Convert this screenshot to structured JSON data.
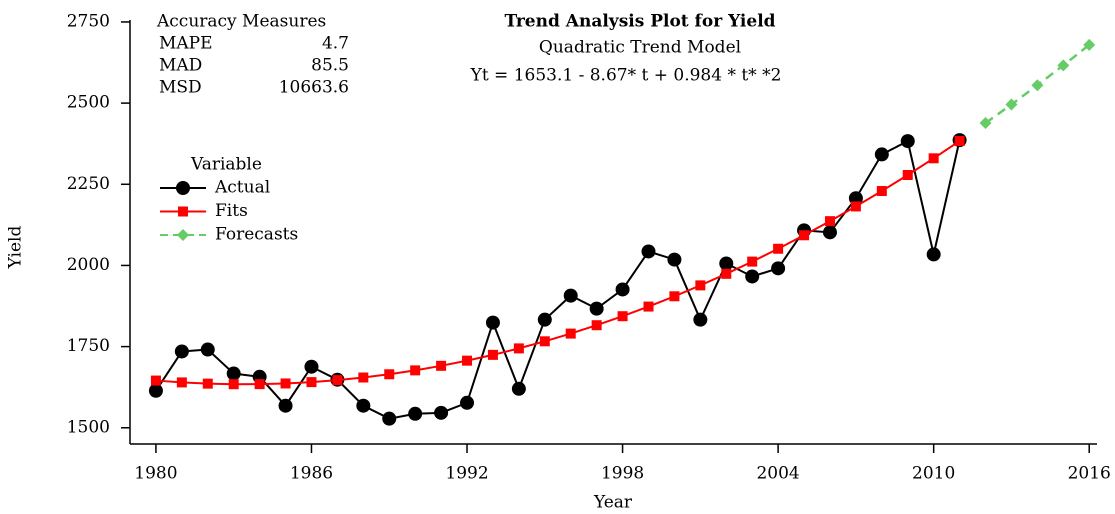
{
  "chart_data": {
    "type": "line",
    "title": "Trend Analysis Plot for Yield",
    "subtitle": "Quadratic Trend Model",
    "annotation": "Yt = 1653.1 - 8.67* t + 0.984 * t* *2",
    "accuracy_measures": {
      "title": "Accuracy Measures",
      "rows": [
        {
          "label": "MAPE",
          "value": 4.7
        },
        {
          "label": "MAD",
          "value": 85.5
        },
        {
          "label": "MSD",
          "value": 10663.6
        }
      ]
    },
    "legend_title": "Variable",
    "x_label": "Year",
    "y_label": "Yield",
    "xlim": [
      1979,
      2016.3
    ],
    "ylim": [
      1450,
      2756
    ],
    "xticks": [
      1980,
      1986,
      1992,
      1998,
      2004,
      2010,
      2016
    ],
    "yticks": [
      1500,
      1750,
      2000,
      2250,
      2500,
      2750
    ],
    "series": [
      {
        "name": "Actual",
        "color": "#000000",
        "marker": "circle",
        "dash": false,
        "x": [
          1980,
          1981,
          1982,
          1983,
          1984,
          1985,
          1986,
          1987,
          1988,
          1989,
          1990,
          1991,
          1992,
          1993,
          1994,
          1995,
          1996,
          1997,
          1998,
          1999,
          2000,
          2001,
          2002,
          2003,
          2004,
          2005,
          2006,
          2007,
          2008,
          2009,
          2010,
          2011
        ],
        "values": [
          1614,
          1735,
          1741,
          1667,
          1657,
          1568,
          1688,
          1648,
          1568,
          1528,
          1543,
          1546,
          1577,
          1824,
          1620,
          1833,
          1907,
          1867,
          1926,
          2043,
          2018,
          1833,
          2006,
          1966,
          1991,
          2108,
          2102,
          2207,
          2342,
          2383,
          2034,
          2386
        ]
      },
      {
        "name": "Fits",
        "color": "#ff0000",
        "marker": "square",
        "dash": false,
        "x": [
          1980,
          1981,
          1982,
          1983,
          1984,
          1985,
          1986,
          1987,
          1988,
          1989,
          1990,
          1991,
          1992,
          1993,
          1994,
          1995,
          1996,
          1997,
          1998,
          1999,
          2000,
          2001,
          2002,
          2003,
          2004,
          2005,
          2006,
          2007,
          2008,
          2009,
          2010,
          2011
        ],
        "values": [
          1645.4,
          1639.7,
          1635.9,
          1634.2,
          1634.4,
          1636.5,
          1640.6,
          1646.7,
          1654.8,
          1664.8,
          1676.8,
          1690.8,
          1706.7,
          1724.6,
          1744.5,
          1766.3,
          1790.1,
          1815.9,
          1843.6,
          1873.3,
          1905.0,
          1938.6,
          1974.2,
          2011.8,
          2051.4,
          2092.9,
          2136.4,
          2181.8,
          2229.2,
          2278.6,
          2330.0,
          2383.3
        ]
      },
      {
        "name": "Forecasts",
        "color": "#66cc66",
        "marker": "diamond",
        "dash": true,
        "x": [
          2012,
          2013,
          2014,
          2015,
          2016
        ],
        "values": [
          2438.6,
          2495.8,
          2555.1,
          2616.3,
          2679.4
        ]
      }
    ]
  }
}
